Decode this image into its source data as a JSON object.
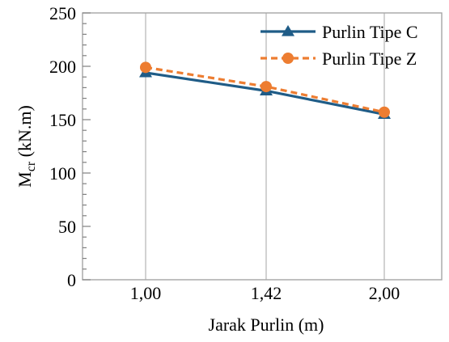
{
  "chart_data": {
    "type": "line",
    "categories": [
      "1,00",
      "1,42",
      "2,00"
    ],
    "series": [
      {
        "name": "Purlin Tipe C",
        "values": [
          194,
          177,
          155
        ],
        "color": "#1f5c87",
        "marker": "triangle",
        "line_style": "solid"
      },
      {
        "name": "Purlin Tipe Z",
        "values": [
          199,
          181,
          157
        ],
        "color": "#ed7d31",
        "marker": "circle",
        "line_style": "dashed"
      }
    ],
    "xlabel": "Jarak Purlin (m)",
    "ylabel": {
      "main": "M",
      "sub": "cr",
      "suffix": " (kN.m)"
    },
    "ylim": [
      0,
      250
    ],
    "yticks": [
      0,
      50,
      100,
      150,
      200,
      250
    ],
    "grid": "vertical",
    "legend": "top-right"
  }
}
